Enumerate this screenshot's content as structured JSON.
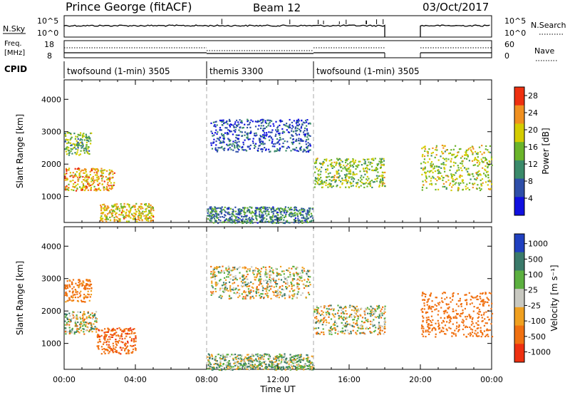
{
  "header": {
    "station": "Prince George (fitACF)",
    "beam": "Beam 12",
    "date": "03/Oct/2017"
  },
  "top_panel": {
    "left_label": "N.Sky",
    "left_ticks": [
      "10^5",
      "10^0"
    ],
    "right_ticks": [
      "10^5",
      "10^0"
    ],
    "right_label": "N.Search"
  },
  "freq_panel": {
    "left_label_1": "Freq.",
    "left_label_2": "[MHz]",
    "left_ticks": [
      "18",
      "8"
    ],
    "right_ticks": [
      "60",
      "0"
    ],
    "right_label": "Nave"
  },
  "cpid": {
    "label": "CPID",
    "segments": [
      {
        "name": "twofsound (1-min) 3505",
        "start_hour": 0,
        "end_hour": 8
      },
      {
        "name": "themis 3300",
        "start_hour": 8,
        "end_hour": 14
      },
      {
        "name": "twofsound (1-min) 3505",
        "start_hour": 14,
        "end_hour": 24
      }
    ]
  },
  "chart_data": [
    {
      "type": "heatmap",
      "title": "",
      "xlabel": "Time UT",
      "ylabel": "Slant Range [km]",
      "xlim": [
        0,
        24
      ],
      "ylim": [
        200,
        4600
      ],
      "x_ticks": [
        "00:00",
        "04:00",
        "08:00",
        "12:00",
        "16:00",
        "20:00",
        "00:00"
      ],
      "y_ticks": [
        "1000",
        "2000",
        "3000",
        "4000"
      ],
      "colorbar": {
        "label": "Power [dB]",
        "ticks": [
          "4",
          "8",
          "12",
          "16",
          "20",
          "24",
          "28"
        ],
        "range": [
          0,
          30
        ],
        "colors": [
          "#1010e0",
          "#2e4ea8",
          "#3a8a6a",
          "#6ab42a",
          "#d4cc00",
          "#f09020",
          "#ee3010"
        ]
      },
      "data_gap_hours": [
        18,
        20
      ],
      "scatter_regions": [
        {
          "hours": [
            0,
            1.5
          ],
          "range_km": [
            2300,
            3000
          ],
          "power_db": 14
        },
        {
          "hours": [
            0,
            2.8
          ],
          "range_km": [
            1200,
            1900
          ],
          "power_db": 22
        },
        {
          "hours": [
            2.0,
            5.0
          ],
          "range_km": [
            250,
            800
          ],
          "power_db": 20
        },
        {
          "hours": [
            8.2,
            13.8
          ],
          "range_km": [
            2400,
            3400
          ],
          "power_db": 6
        },
        {
          "hours": [
            8.0,
            14.0
          ],
          "range_km": [
            200,
            700
          ],
          "power_db": 10
        },
        {
          "hours": [
            14.0,
            18.0
          ],
          "range_km": [
            1300,
            2200
          ],
          "power_db": 16
        },
        {
          "hours": [
            20.0,
            24.0
          ],
          "range_km": [
            1200,
            2600
          ],
          "power_db": 18
        }
      ]
    },
    {
      "type": "heatmap",
      "title": "",
      "xlabel": "Time UT",
      "ylabel": "Slant Range [km]",
      "xlim": [
        0,
        24
      ],
      "ylim": [
        200,
        4600
      ],
      "x_ticks": [
        "00:00",
        "04:00",
        "08:00",
        "12:00",
        "16:00",
        "20:00",
        "00:00"
      ],
      "y_ticks": [
        "1000",
        "2000",
        "3000",
        "4000"
      ],
      "colorbar": {
        "label": "Velocity [m s⁻¹]",
        "ticks": [
          "1000",
          "500",
          "100",
          "25",
          "-25",
          "-100",
          "-500",
          "-1000"
        ],
        "range": [
          -1000,
          1000
        ],
        "colors": [
          "#2040c0",
          "#3a7a6a",
          "#5cb040",
          "#c8c8c0",
          "#f0a020",
          "#f07010",
          "#ee3010"
        ]
      },
      "data_gap_hours": [
        18,
        20
      ],
      "scatter_regions": [
        {
          "hours": [
            0,
            1.5
          ],
          "range_km": [
            2300,
            3000
          ],
          "velocity": -200
        },
        {
          "hours": [
            0,
            1.8
          ],
          "range_km": [
            1300,
            2000
          ],
          "velocity": 0
        },
        {
          "hours": [
            1.8,
            4.0
          ],
          "range_km": [
            700,
            1500
          ],
          "velocity": -400
        },
        {
          "hours": [
            8.2,
            13.8
          ],
          "range_km": [
            2400,
            3400
          ],
          "velocity": 0
        },
        {
          "hours": [
            8.0,
            14.0
          ],
          "range_km": [
            200,
            700
          ],
          "velocity": 50
        },
        {
          "hours": [
            14.0,
            18.0
          ],
          "range_km": [
            1300,
            2200
          ],
          "velocity": 0
        },
        {
          "hours": [
            20.0,
            24.0
          ],
          "range_km": [
            1200,
            2600
          ],
          "velocity": -300
        }
      ]
    }
  ]
}
